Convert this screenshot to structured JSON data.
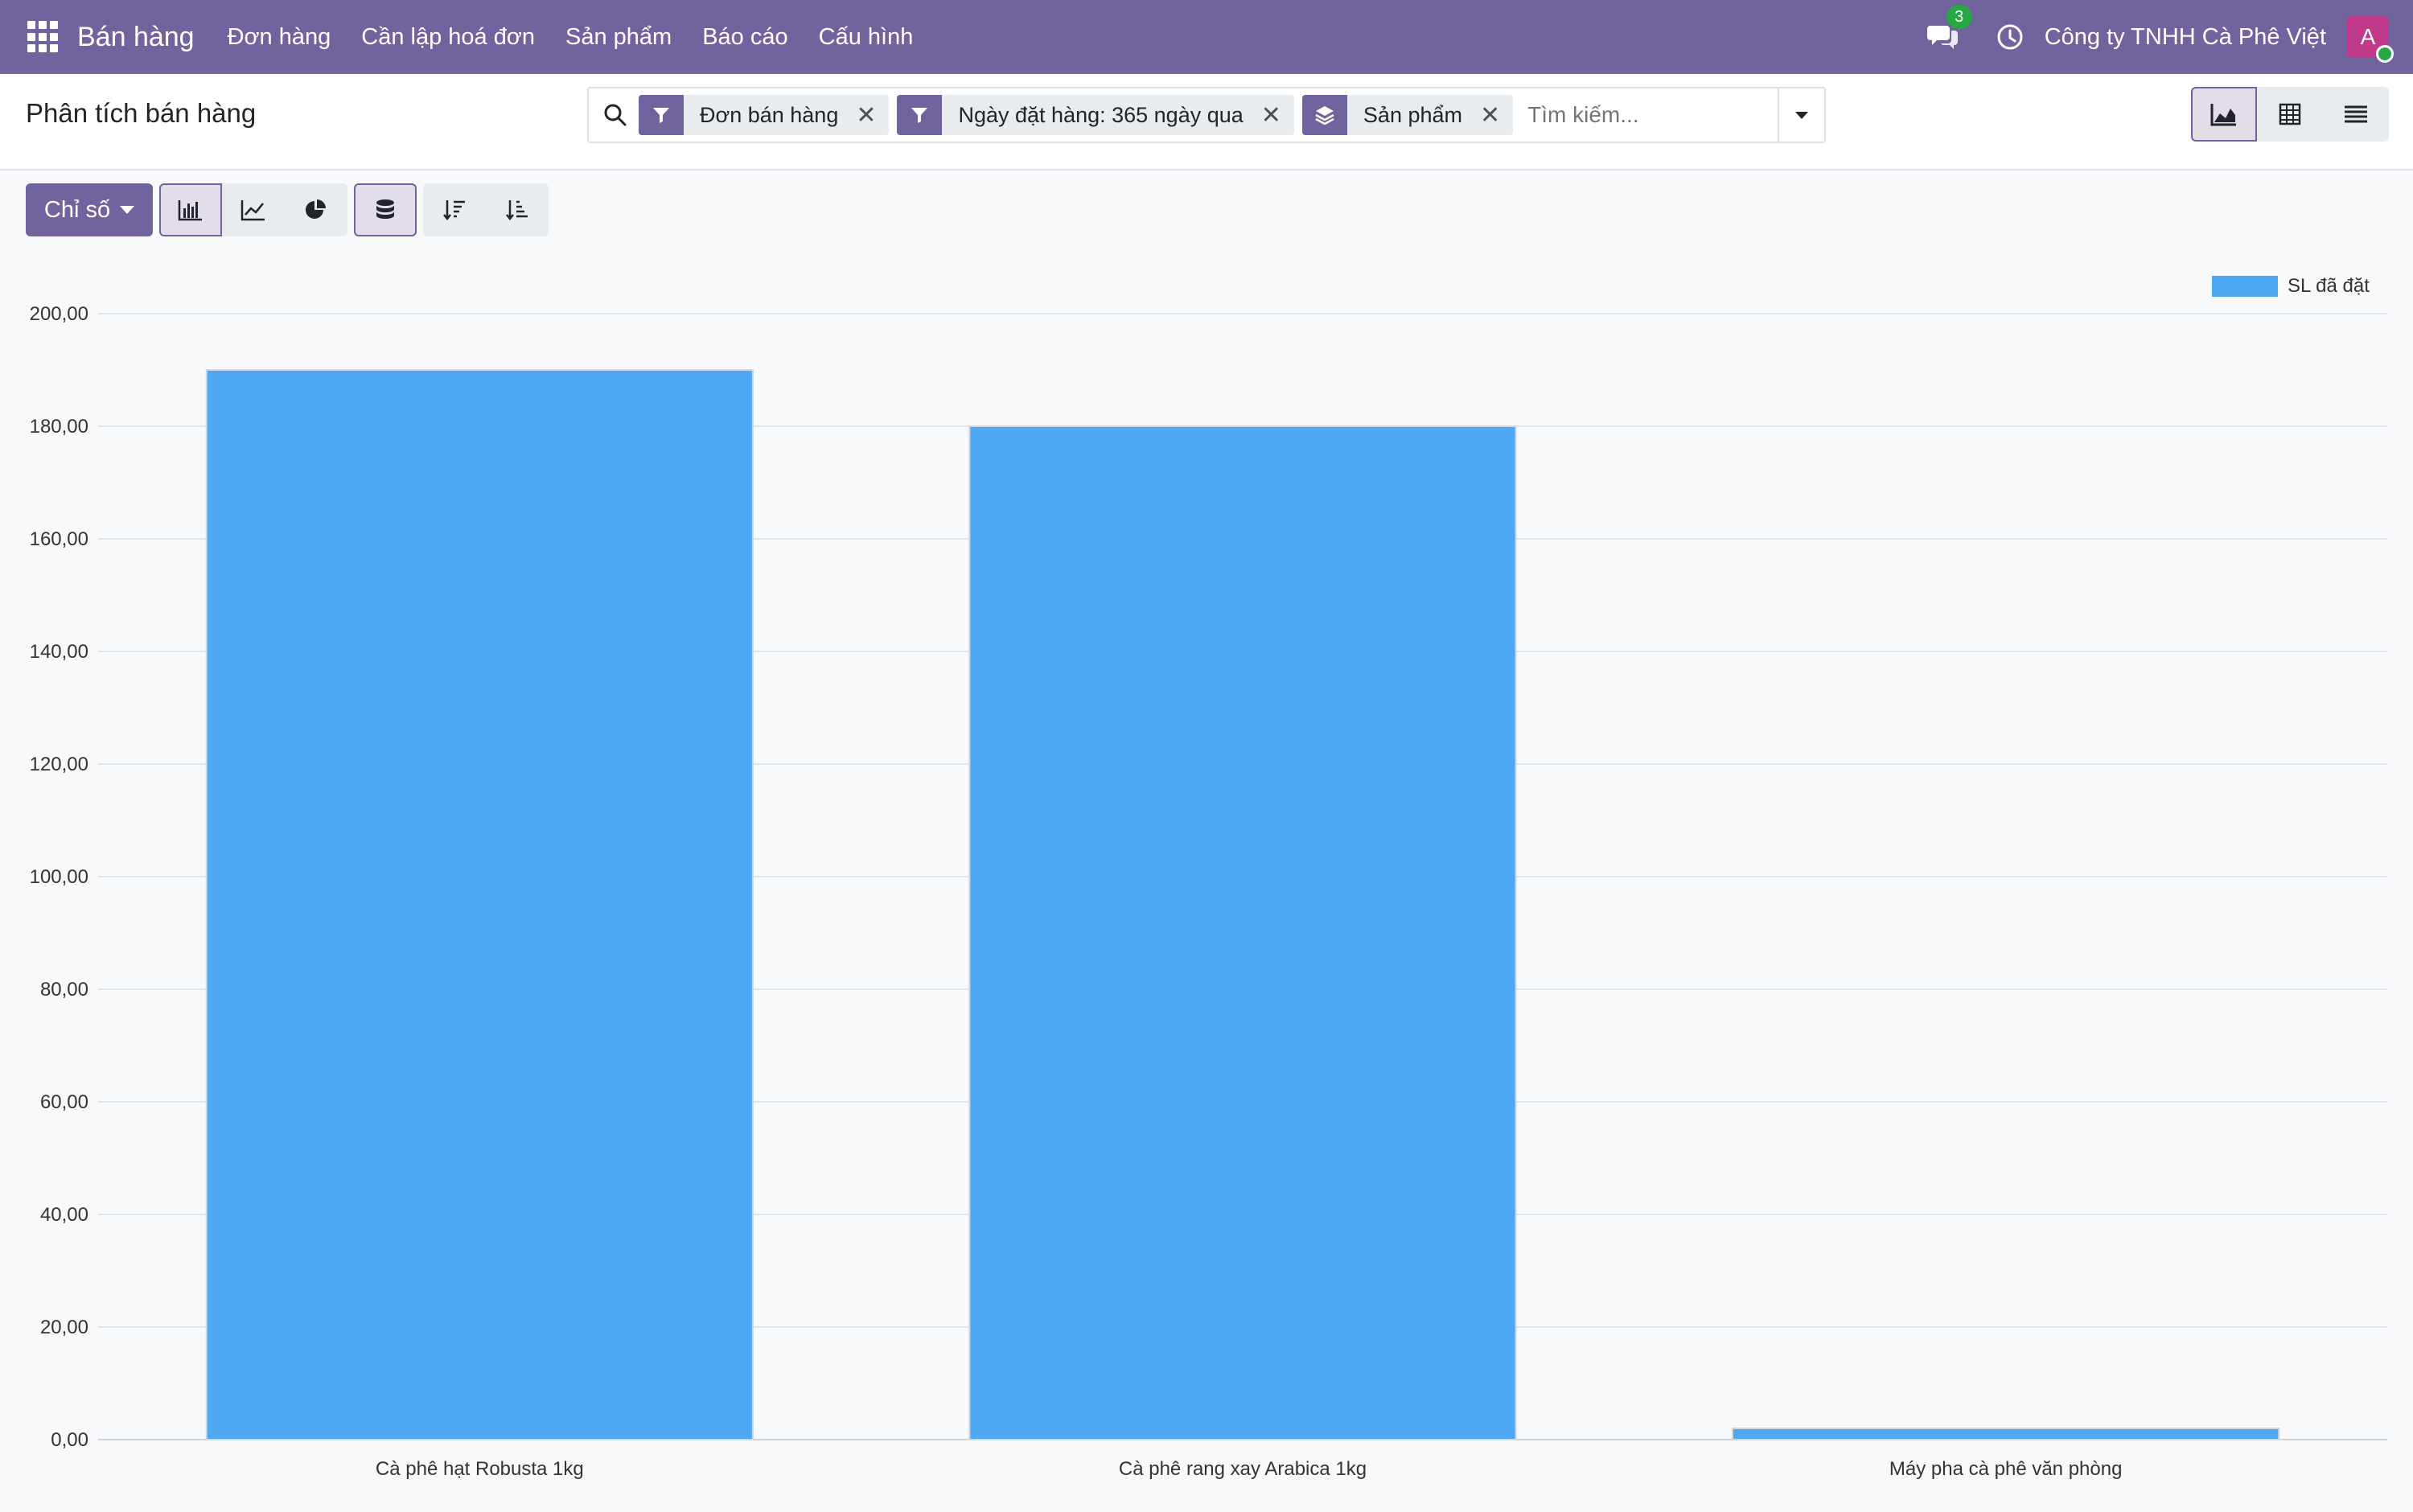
{
  "navbar": {
    "app_name": "Bán hàng",
    "menu": [
      "Đơn hàng",
      "Cần lập hoá đơn",
      "Sản phẩm",
      "Báo cáo",
      "Cấu hình"
    ],
    "chat_count": "3",
    "company": "Công ty TNHH Cà Phê Việt",
    "avatar_initial": "A"
  },
  "control_panel": {
    "title": "Phân tích bán hàng",
    "facets": [
      {
        "icon": "filter-icon",
        "value": "Đơn bán hàng"
      },
      {
        "icon": "filter-icon",
        "value": "Ngày đặt hàng: 365 ngày qua"
      },
      {
        "icon": "layers-icon",
        "value": "Sản phẩm"
      }
    ],
    "search_placeholder": "Tìm kiếm...",
    "views": [
      "graph-view-icon",
      "pivot-view-icon",
      "list-view-icon"
    ],
    "active_view": "graph"
  },
  "toolbar": {
    "measures_label": "Chỉ số",
    "chart_types": [
      "bar-chart-icon",
      "line-chart-icon",
      "pie-chart-icon"
    ],
    "active_chart_type": "bar",
    "stacked_active": true
  },
  "colors": {
    "brand": "#71639e",
    "bar": "#4fa8f2"
  },
  "chart_data": {
    "type": "bar",
    "categories": [
      "Cà phê hạt Robusta 1kg",
      "Cà phê rang xay Arabica 1kg",
      "Máy pha cà phê văn phòng"
    ],
    "series": [
      {
        "name": "SL đã đặt",
        "values": [
          190,
          180,
          2
        ]
      }
    ],
    "ylim": [
      0,
      200
    ],
    "yticks": [
      "0,00",
      "20,00",
      "40,00",
      "60,00",
      "80,00",
      "100,00",
      "120,00",
      "140,00",
      "160,00",
      "180,00",
      "200,00"
    ],
    "grid": true,
    "legend": "top-right"
  }
}
